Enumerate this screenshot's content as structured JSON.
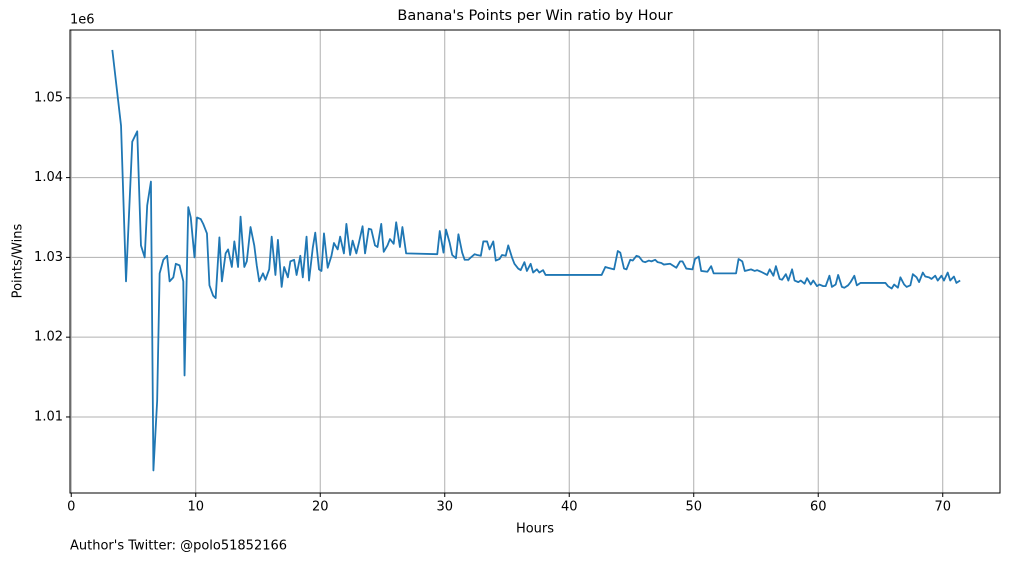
{
  "chart_data": {
    "type": "line",
    "title": "Banana's Points per Win ratio by Hour",
    "xlabel": "Hours",
    "ylabel": "Points/Wins",
    "y_offset_label": "1e6",
    "color": "#1f77b4",
    "grid": true,
    "xlim": [
      -0.1,
      74.6
    ],
    "ylim": [
      1.00047,
      1.0585
    ],
    "xticks": [
      0,
      10,
      20,
      30,
      40,
      50,
      60,
      70
    ],
    "yticks": [
      1.01,
      1.02,
      1.03,
      1.04,
      1.05
    ],
    "x": [
      3.3,
      4.0,
      4.4,
      4.9,
      5.3,
      5.6,
      5.9,
      6.1,
      6.4,
      6.6,
      6.9,
      7.1,
      7.4,
      7.7,
      7.9,
      8.2,
      8.4,
      8.7,
      9.0,
      9.1,
      9.4,
      9.6,
      9.9,
      10.1,
      10.4,
      10.6,
      10.9,
      11.1,
      11.4,
      11.6,
      11.9,
      12.1,
      12.4,
      12.6,
      12.9,
      13.1,
      13.4,
      13.6,
      13.9,
      14.1,
      14.4,
      14.7,
      14.9,
      15.1,
      15.4,
      15.6,
      15.9,
      16.1,
      16.4,
      16.6,
      16.9,
      17.1,
      17.4,
      17.6,
      17.9,
      18.1,
      18.4,
      18.6,
      18.9,
      19.1,
      19.4,
      19.6,
      19.9,
      20.1,
      20.3,
      20.6,
      20.9,
      21.1,
      21.4,
      21.6,
      21.9,
      22.1,
      22.4,
      22.6,
      22.9,
      23.1,
      23.4,
      23.6,
      23.9,
      24.1,
      24.4,
      24.6,
      24.9,
      25.1,
      25.4,
      25.6,
      25.9,
      26.1,
      26.4,
      26.6,
      26.9,
      29.4,
      29.6,
      29.9,
      30.1,
      30.4,
      30.6,
      30.9,
      31.1,
      31.4,
      31.6,
      31.9,
      32.1,
      32.4,
      32.6,
      32.9,
      33.1,
      33.4,
      33.6,
      33.9,
      34.1,
      34.4,
      34.6,
      34.9,
      35.1,
      35.4,
      35.6,
      35.9,
      36.1,
      36.4,
      36.6,
      36.9,
      37.1,
      37.4,
      37.6,
      37.9,
      38.1,
      42.6,
      42.9,
      43.1,
      43.6,
      43.9,
      44.1,
      44.4,
      44.6,
      44.9,
      45.1,
      45.4,
      45.6,
      45.9,
      46.1,
      46.4,
      46.6,
      46.9,
      47.1,
      47.4,
      47.6,
      48.1,
      48.6,
      48.9,
      49.1,
      49.4,
      49.9,
      50.1,
      50.4,
      50.6,
      51.1,
      51.4,
      51.6,
      53.4,
      53.6,
      53.9,
      54.1,
      54.6,
      54.9,
      55.1,
      55.4,
      55.9,
      56.1,
      56.4,
      56.6,
      56.9,
      57.1,
      57.4,
      57.6,
      57.9,
      58.1,
      58.4,
      58.6,
      58.9,
      59.1,
      59.4,
      59.6,
      59.9,
      60.1,
      60.4,
      60.6,
      60.9,
      61.1,
      61.4,
      61.6,
      61.9,
      62.1,
      62.4,
      62.6,
      62.9,
      63.1,
      63.4,
      65.4,
      65.6,
      65.9,
      66.1,
      66.4,
      66.6,
      66.9,
      67.1,
      67.4,
      67.6,
      67.9,
      68.1,
      68.4,
      68.6,
      68.9,
      69.1,
      69.4,
      69.6,
      69.9,
      70.1,
      70.4,
      70.6,
      70.9,
      71.1,
      71.4
    ],
    "values": [
      1.056,
      1.0465,
      1.027,
      1.0445,
      1.0458,
      1.0315,
      1.03,
      1.0365,
      1.0395,
      1.0033,
      1.012,
      1.028,
      1.0297,
      1.0302,
      1.027,
      1.0275,
      1.0292,
      1.029,
      1.027,
      1.0152,
      1.0363,
      1.035,
      1.03,
      1.035,
      1.0348,
      1.0342,
      1.033,
      1.0265,
      1.0252,
      1.0249,
      1.0325,
      1.027,
      1.0305,
      1.031,
      1.0288,
      1.032,
      1.0288,
      1.0351,
      1.0288,
      1.0295,
      1.0338,
      1.0315,
      1.029,
      1.027,
      1.028,
      1.0272,
      1.0285,
      1.0326,
      1.0278,
      1.0322,
      1.0263,
      1.0288,
      1.0275,
      1.0295,
      1.0297,
      1.0278,
      1.0302,
      1.0275,
      1.0326,
      1.0271,
      1.0312,
      1.0331,
      1.0285,
      1.0283,
      1.033,
      1.0287,
      1.0302,
      1.0318,
      1.031,
      1.0326,
      1.0305,
      1.0342,
      1.0303,
      1.0321,
      1.0305,
      1.0318,
      1.0339,
      1.0305,
      1.0336,
      1.0335,
      1.0315,
      1.0313,
      1.0342,
      1.0307,
      1.0315,
      1.0323,
      1.0317,
      1.0344,
      1.0313,
      1.0338,
      1.0305,
      1.0304,
      1.0333,
      1.0306,
      1.0335,
      1.0318,
      1.0303,
      1.0299,
      1.0329,
      1.0306,
      1.0297,
      1.0297,
      1.03,
      1.0304,
      1.0303,
      1.0302,
      1.032,
      1.032,
      1.031,
      1.032,
      1.0296,
      1.0298,
      1.0303,
      1.0302,
      1.0315,
      1.03,
      1.0292,
      1.0286,
      1.0284,
      1.0294,
      1.0283,
      1.0292,
      1.0281,
      1.0285,
      1.0281,
      1.0284,
      1.0278,
      1.0278,
      1.0288,
      1.0287,
      1.0285,
      1.0308,
      1.0306,
      1.0286,
      1.0285,
      1.0297,
      1.0296,
      1.0302,
      1.0301,
      1.0295,
      1.0294,
      1.0296,
      1.0295,
      1.0297,
      1.0294,
      1.0293,
      1.0291,
      1.0292,
      1.0287,
      1.0295,
      1.0295,
      1.0286,
      1.0285,
      1.0298,
      1.0301,
      1.0283,
      1.0282,
      1.0289,
      1.028,
      1.028,
      1.0298,
      1.0295,
      1.0283,
      1.0285,
      1.0283,
      1.0284,
      1.0282,
      1.0278,
      1.0285,
      1.0277,
      1.0289,
      1.0273,
      1.0272,
      1.0279,
      1.0271,
      1.0285,
      1.0271,
      1.0269,
      1.0271,
      1.0267,
      1.0274,
      1.0266,
      1.0271,
      1.0264,
      1.0266,
      1.0264,
      1.0264,
      1.0277,
      1.0263,
      1.0266,
      1.0278,
      1.0263,
      1.0262,
      1.0265,
      1.0269,
      1.0277,
      1.0265,
      1.0268,
      1.0268,
      1.0264,
      1.0261,
      1.0266,
      1.0262,
      1.0275,
      1.0266,
      1.0263,
      1.0265,
      1.0279,
      1.0275,
      1.0269,
      1.0281,
      1.0276,
      1.0275,
      1.0273,
      1.0277,
      1.0271,
      1.0277,
      1.0271,
      1.0281,
      1.0271,
      1.0276,
      1.0268,
      1.0271
    ]
  },
  "footer": "Author's Twitter: @polo51852166"
}
